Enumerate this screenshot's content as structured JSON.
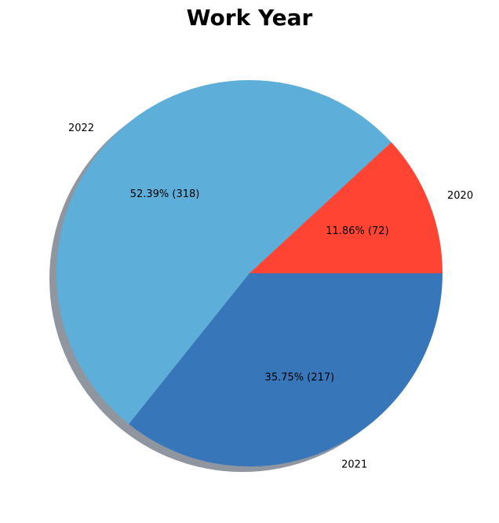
{
  "chart_data": {
    "type": "pie",
    "title": "Work Year",
    "categories": [
      "2020",
      "2022",
      "2021"
    ],
    "values": [
      72,
      318,
      217
    ],
    "percent_labels": [
      "11.86%  (72)",
      "52.39%  (318)",
      "35.75%  (217)"
    ],
    "colors": [
      "#ff4433",
      "#5daed9",
      "#3876ba"
    ],
    "shadow": true,
    "start_angle_deg": 0,
    "direction": "counterclockwise",
    "legend": "none"
  }
}
